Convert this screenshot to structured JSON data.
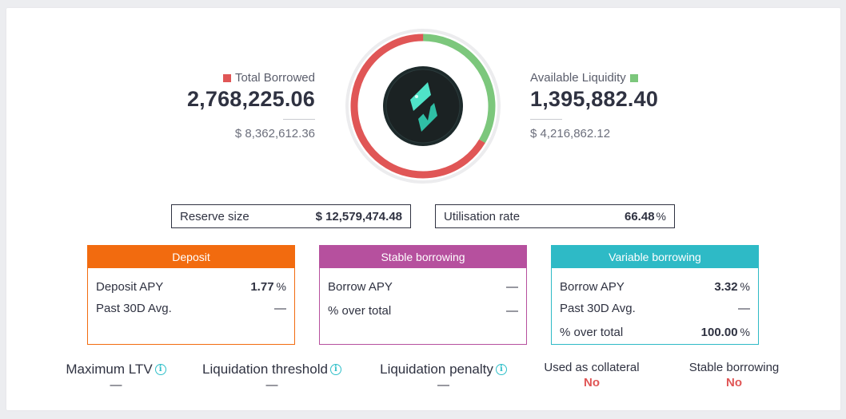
{
  "colors": {
    "borrowed": "#e05656",
    "liquidity": "#7cc77c",
    "deposit": "#f26b0f",
    "stable": "#b6509e",
    "variable": "#2ebac6"
  },
  "top": {
    "total_borrowed": {
      "label": "Total Borrowed",
      "value": "2,768,225.06",
      "usd": "$ 8,362,612.36"
    },
    "available_liquidity": {
      "label": "Available Liquidity",
      "value": "1,395,882.40",
      "usd": "$ 4,216,862.12"
    },
    "utilisation_fraction": 0.6648,
    "token_icon": "lightning-token-icon"
  },
  "reserve": {
    "label": "Reserve size",
    "value": "$ 12,579,474.48"
  },
  "utilisation": {
    "label": "Utilisation rate",
    "value": "66.48",
    "unit": "%"
  },
  "deposit": {
    "title": "Deposit",
    "rows": [
      {
        "label": "Deposit APY",
        "value": "1.77",
        "unit": "%"
      },
      {
        "label": "Past 30D Avg.",
        "value": "—",
        "unit": ""
      }
    ]
  },
  "stable": {
    "title": "Stable borrowing",
    "rows": [
      {
        "label": "Borrow APY",
        "value": "—",
        "unit": ""
      },
      {
        "label": "% over total",
        "value": "—",
        "unit": ""
      }
    ]
  },
  "variable": {
    "title": "Variable borrowing",
    "rows": [
      {
        "label": "Borrow APY",
        "value": "3.32",
        "unit": "%"
      },
      {
        "label": "Past 30D Avg.",
        "value": "—",
        "unit": ""
      },
      {
        "label": "% over total",
        "value": "100.00",
        "unit": "%"
      }
    ]
  },
  "params": {
    "max_ltv": {
      "label": "Maximum LTV",
      "value": "—"
    },
    "liq_threshold": {
      "label": "Liquidation threshold",
      "value": "—"
    },
    "liq_penalty": {
      "label": "Liquidation penalty",
      "value": "—"
    },
    "collateral": {
      "label": "Used as collateral",
      "value": "No"
    },
    "stable_borrowing": {
      "label": "Stable borrowing",
      "value": "No"
    }
  }
}
